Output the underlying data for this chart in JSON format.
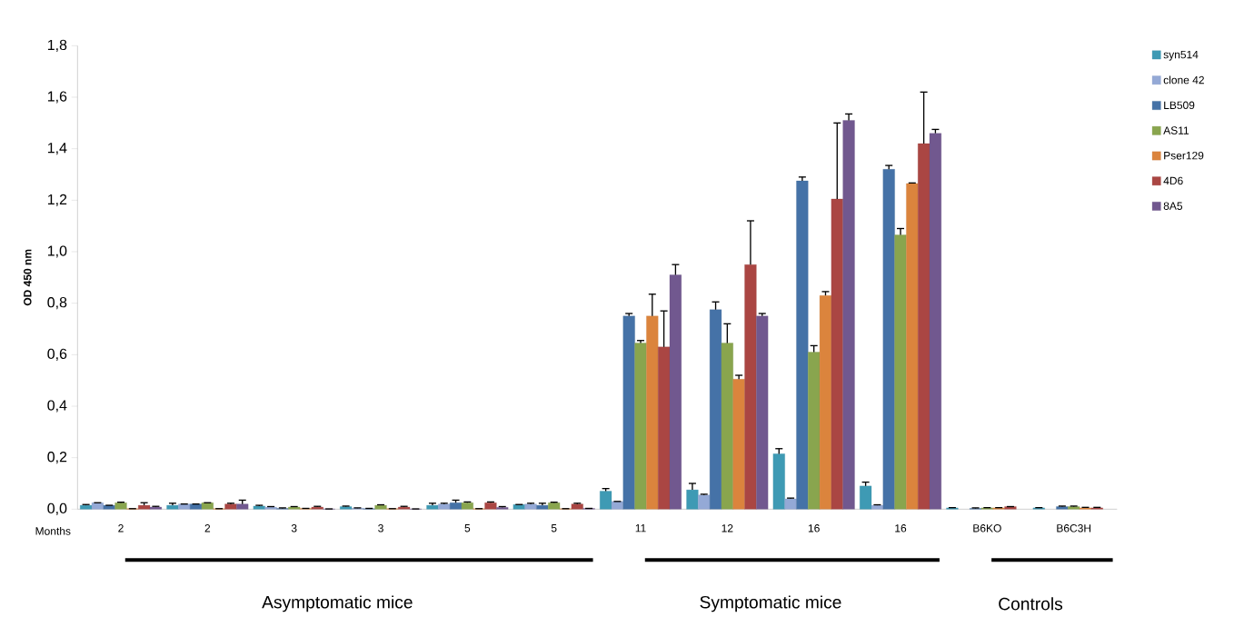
{
  "chart_data": {
    "type": "bar",
    "ylabel": "OD 450 nm",
    "categories": [
      "2",
      "2",
      "3",
      "3",
      "5",
      "5",
      "11",
      "12",
      "16",
      "16",
      "B6KO",
      "B6C3H"
    ],
    "series": [
      {
        "name": "syn514",
        "color": "#3e9ab4",
        "values": [
          0.015,
          0.015,
          0.012,
          0.01,
          0.015,
          0.018,
          0.07,
          0.075,
          0.215,
          0.09,
          0.005,
          0.005
        ],
        "errors": [
          0.003,
          0.008,
          0.003,
          0.002,
          0.008,
          null,
          0.01,
          0.025,
          0.02,
          0.015,
          0.001,
          0.001
        ]
      },
      {
        "name": "clone 42",
        "color": "#94a9d6",
        "values": [
          0.025,
          0.02,
          0.008,
          0.004,
          0.02,
          0.02,
          0.03,
          0.055,
          0.04,
          0.015,
          null,
          null
        ],
        "errors": [
          null,
          null,
          0.002,
          0.001,
          0.003,
          0.003,
          null,
          0.003,
          0.003,
          0.002,
          null,
          null
        ]
      },
      {
        "name": "LB509",
        "color": "#4572a7",
        "values": [
          0.015,
          0.02,
          0.003,
          0.002,
          0.025,
          0.015,
          0.75,
          0.775,
          1.275,
          1.32,
          0.003,
          0.01
        ],
        "errors": [
          null,
          null,
          0.002,
          0.001,
          0.01,
          0.008,
          0.01,
          0.03,
          0.015,
          0.015,
          0.002,
          0.002
        ]
      },
      {
        "name": "AS11",
        "color": "#89a54e",
        "values": [
          0.025,
          0.025,
          0.008,
          0.015,
          0.025,
          0.025,
          0.645,
          0.645,
          0.61,
          1.065,
          0.005,
          0.01
        ],
        "errors": [
          0.002,
          null,
          0.002,
          0.002,
          0.003,
          0.002,
          0.01,
          0.075,
          0.025,
          0.025,
          0.001,
          0.002
        ]
      },
      {
        "name": "Pser129",
        "color": "#db843d",
        "values": [
          0.002,
          0.002,
          0.003,
          0.002,
          0.002,
          0.002,
          0.75,
          0.505,
          0.83,
          1.265,
          0.005,
          0.005
        ],
        "errors": [
          null,
          null,
          null,
          null,
          null,
          null,
          0.085,
          0.015,
          0.015,
          0.002,
          0.001,
          0.002
        ]
      },
      {
        "name": "4D6",
        "color": "#aa4643",
        "values": [
          0.015,
          0.02,
          0.008,
          0.008,
          0.025,
          0.02,
          0.63,
          0.95,
          1.205,
          1.42,
          0.01,
          0.005
        ],
        "errors": [
          0.01,
          0.003,
          0.003,
          0.003,
          0.003,
          0.003,
          0.14,
          0.17,
          0.295,
          0.2,
          null,
          0.002
        ]
      },
      {
        "name": "8A5",
        "color": "#71588f",
        "values": [
          0.008,
          0.02,
          0.001,
          0.001,
          0.007,
          0.003,
          0.91,
          0.75,
          1.51,
          1.46,
          null,
          null
        ],
        "errors": [
          0.003,
          0.015,
          null,
          null,
          0.003,
          null,
          0.04,
          0.01,
          0.025,
          0.015,
          null,
          null
        ]
      }
    ],
    "ylim": [
      0,
      1.8
    ],
    "yticks": [
      {
        "value": 0,
        "label": "0,0"
      },
      {
        "value": 0.2,
        "label": "0,2"
      },
      {
        "value": 0.4,
        "label": "0,4"
      },
      {
        "value": 0.6,
        "label": "0,6"
      },
      {
        "value": 0.8,
        "label": "0,8"
      },
      {
        "value": 1.0,
        "label": "1,0"
      },
      {
        "value": 1.2,
        "label": "1,2"
      },
      {
        "value": 1.4,
        "label": "1,4"
      },
      {
        "value": 1.6,
        "label": "1,6"
      },
      {
        "value": 1.8,
        "label": "1,8"
      }
    ],
    "grid": false,
    "legend": "right",
    "annotations": [
      "Months",
      "Asymptomatic mice",
      "Symptomatic mice",
      "Controls"
    ]
  }
}
